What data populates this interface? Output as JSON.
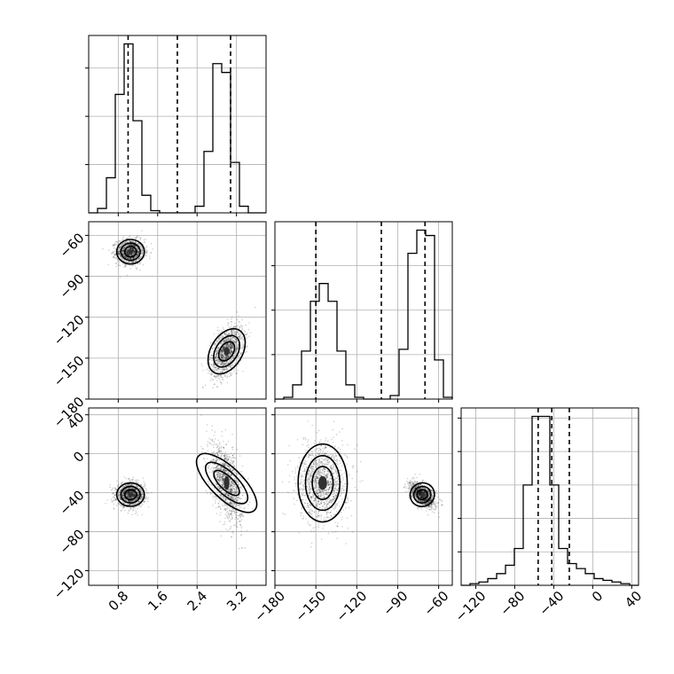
{
  "chart_data": {
    "type": "corner",
    "parameters": [
      {
        "range": [
          0.2,
          3.8
        ],
        "ticks": [
          0.8,
          1.6,
          2.4,
          3.2
        ],
        "tick_labels": [
          "0.8",
          "1.6",
          "2.4",
          "3.2"
        ],
        "quantiles": [
          1.0,
          2.0,
          3.08
        ],
        "histogram": {
          "edges": [
            0.2,
            0.38,
            0.56,
            0.74,
            0.92,
            1.1,
            1.28,
            1.46,
            1.64,
            1.82,
            2.0,
            2.18,
            2.36,
            2.54,
            2.72,
            2.9,
            3.08,
            3.26,
            3.44,
            3.62,
            3.8
          ],
          "counts": [
            0,
            2,
            16,
            54,
            77,
            42,
            8,
            1,
            0,
            0,
            0,
            0,
            3,
            28,
            68,
            64,
            23,
            3,
            0,
            0
          ]
        }
      },
      {
        "range": [
          -180,
          -50
        ],
        "ticks": [
          -180,
          -150,
          -120,
          -90,
          -60
        ],
        "tick_labels": [
          "−180",
          "−150",
          "−120",
          "−90",
          "−60"
        ],
        "quantiles": [
          -150,
          -102,
          -70
        ],
        "histogram": {
          "edges": [
            -180,
            -173.5,
            -167,
            -160.5,
            -154,
            -147.5,
            -141,
            -134.5,
            -128,
            -121.5,
            -115,
            -108.5,
            -102,
            -95.5,
            -89,
            -82.5,
            -76,
            -69.5,
            -63,
            -56.5,
            -50
          ],
          "counts": [
            0,
            1,
            8,
            27,
            55,
            65,
            55,
            27,
            8,
            1,
            0,
            0,
            0,
            2,
            28,
            82,
            95,
            92,
            22,
            1
          ]
        }
      },
      {
        "range": [
          -135,
          47
        ],
        "ticks": [
          -120,
          -80,
          -40,
          0,
          40
        ],
        "tick_labels": [
          "−120",
          "−80",
          "−40",
          "0",
          "40"
        ],
        "quantiles": [
          -56,
          -42,
          -24
        ],
        "histogram": {
          "edges": [
            -135,
            -125.9,
            -116.8,
            -107.7,
            -98.6,
            -89.5,
            -80.4,
            -71.3,
            -62.2,
            -53.1,
            -44,
            -34.9,
            -25.8,
            -16.7,
            -7.6,
            1.5,
            10.6,
            19.7,
            28.8,
            37.9,
            47
          ],
          "counts": [
            0,
            1,
            2,
            4,
            7,
            12,
            22,
            60,
            101,
            101,
            60,
            22,
            13,
            10,
            7,
            4,
            3,
            2,
            1,
            0
          ]
        }
      }
    ],
    "diagonal_y_ticks": [
      [
        0,
        22,
        44,
        66,
        88
      ],
      [
        0,
        25,
        50,
        75,
        100
      ],
      [
        0,
        20,
        40,
        60,
        80,
        100
      ]
    ],
    "clusters": [
      {
        "x": 1.05,
        "y": -72,
        "z": -42,
        "sx": 0.14,
        "sy": 4.5,
        "sz": 6,
        "rho_xy": 0.0,
        "rho_xz": 0.0,
        "rho_yz": -0.5
      },
      {
        "x": 3.0,
        "y": -145,
        "z": -30,
        "sx": 0.16,
        "sy": 9,
        "sz": 20,
        "rho_xy": 0.45,
        "rho_xz": -0.5,
        "rho_yz": 0.0
      }
    ],
    "grid": true
  }
}
